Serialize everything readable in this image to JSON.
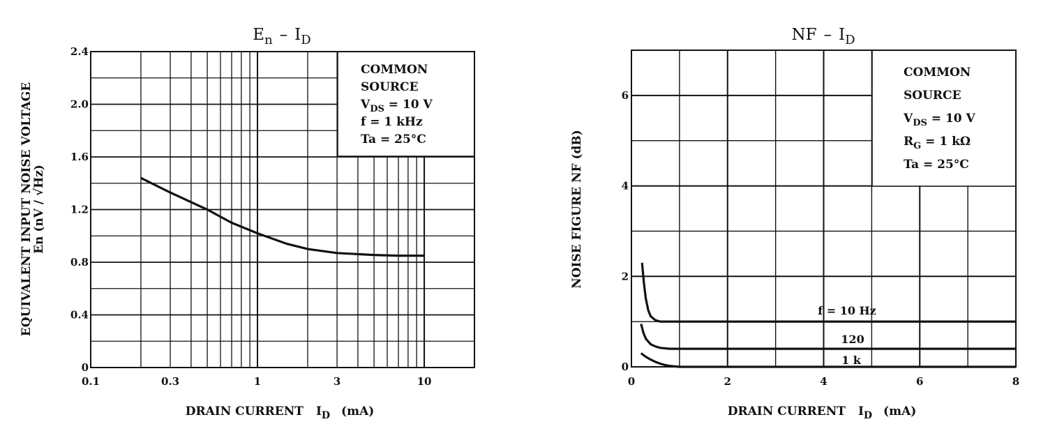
{
  "chart_data": [
    {
      "type": "line",
      "title": "En – ID",
      "title_main": "E",
      "title_sub": "n",
      "title_sep": "–",
      "title_main2": "I",
      "title_sub2": "D",
      "xscale": "log",
      "xlim": [
        0.1,
        20
      ],
      "ylim": [
        0,
        2.4
      ],
      "xticks": [
        {
          "value": 0.1,
          "label": "0.1"
        },
        {
          "value": 0.3,
          "label": "0.3"
        },
        {
          "value": 1,
          "label": "1"
        },
        {
          "value": 3,
          "label": "3"
        },
        {
          "value": 10,
          "label": "10"
        }
      ],
      "yticks": [
        {
          "value": 0,
          "label": "0"
        },
        {
          "value": 0.4,
          "label": "0.4"
        },
        {
          "value": 0.8,
          "label": "0.8"
        },
        {
          "value": 1.2,
          "label": "1.2"
        },
        {
          "value": 1.6,
          "label": "1.6"
        },
        {
          "value": 2.0,
          "label": "2.0"
        },
        {
          "value": 2.4,
          "label": "2.4"
        }
      ],
      "grid": true,
      "xlabel": "DRAIN CURRENT ID (mA)",
      "xlabel_main": "DRAIN CURRENT",
      "xlabel_sym": "I",
      "xlabel_sub": "D",
      "xlabel_unit": "(mA)",
      "ylabel_line1": "EQUIVALENT INPUT NOISE VOLTAGE",
      "ylabel_line2": "En   (nV / √Hz)",
      "legend_position": "top-right",
      "conditions": [
        {
          "main": "COMMON"
        },
        {
          "main": "SOURCE"
        },
        {
          "main": "V",
          "sub": "DS",
          "rest": " = 10 V"
        },
        {
          "main": "f = 1 kHz"
        },
        {
          "main": "Ta = 25°C"
        }
      ],
      "series": [
        {
          "x": [
            0.2,
            0.3,
            0.5,
            0.7,
            1,
            1.5,
            2,
            3,
            5,
            7,
            10
          ],
          "y": [
            1.44,
            1.33,
            1.2,
            1.1,
            1.02,
            0.94,
            0.9,
            0.87,
            0.855,
            0.85,
            0.85
          ]
        }
      ]
    },
    {
      "type": "line",
      "title": "NF – ID",
      "title_main": "NF",
      "title_sep": "–",
      "title_main2": "I",
      "title_sub2": "D",
      "xscale": "linear",
      "xlim": [
        0,
        8
      ],
      "ylim": [
        0,
        7
      ],
      "xticks": [
        {
          "value": 0,
          "label": "0"
        },
        {
          "value": 2,
          "label": "2"
        },
        {
          "value": 4,
          "label": "4"
        },
        {
          "value": 6,
          "label": "6"
        },
        {
          "value": 8,
          "label": "8"
        }
      ],
      "yticks": [
        {
          "value": 0,
          "label": "0"
        },
        {
          "value": 2,
          "label": "2"
        },
        {
          "value": 4,
          "label": "4"
        },
        {
          "value": 6,
          "label": "6"
        }
      ],
      "grid": true,
      "xlabel": "DRAIN CURRENT ID (mA)",
      "xlabel_main": "DRAIN CURRENT",
      "xlabel_sym": "I",
      "xlabel_sub": "D",
      "xlabel_unit": "(mA)",
      "ylabel": "NOISE FIGURE NF (dB)",
      "legend_position": "top-right",
      "conditions": [
        {
          "main": "COMMON"
        },
        {
          "main": "SOURCE"
        },
        {
          "main": "V",
          "sub": "DS",
          "rest": " = 10 V"
        },
        {
          "main": "R",
          "sub": "G",
          "rest": " = 1 kΩ"
        },
        {
          "main": "Ta = 25°C"
        }
      ],
      "series": [
        {
          "name": "f = 10 Hz",
          "x": [
            0.22,
            0.26,
            0.3,
            0.35,
            0.4,
            0.5,
            0.6,
            0.7,
            1,
            2,
            4,
            6,
            8
          ],
          "y": [
            2.3,
            1.85,
            1.5,
            1.25,
            1.12,
            1.03,
            1.0,
            1.0,
            1.0,
            1.0,
            1.0,
            1.0,
            1.0
          ]
        },
        {
          "name": "120",
          "x": [
            0.2,
            0.25,
            0.3,
            0.4,
            0.5,
            0.6,
            0.8,
            1,
            2,
            4,
            6,
            8
          ],
          "y": [
            0.95,
            0.75,
            0.62,
            0.5,
            0.45,
            0.42,
            0.4,
            0.4,
            0.4,
            0.4,
            0.4,
            0.4
          ]
        },
        {
          "name": "1 k",
          "x": [
            0.2,
            0.3,
            0.4,
            0.5,
            0.6,
            0.7,
            0.8,
            0.9,
            1,
            2,
            4,
            6,
            8
          ],
          "y": [
            0.3,
            0.22,
            0.16,
            0.11,
            0.07,
            0.04,
            0.02,
            0.01,
            0.0,
            0.0,
            0.0,
            0.0,
            0.0
          ]
        }
      ]
    }
  ]
}
